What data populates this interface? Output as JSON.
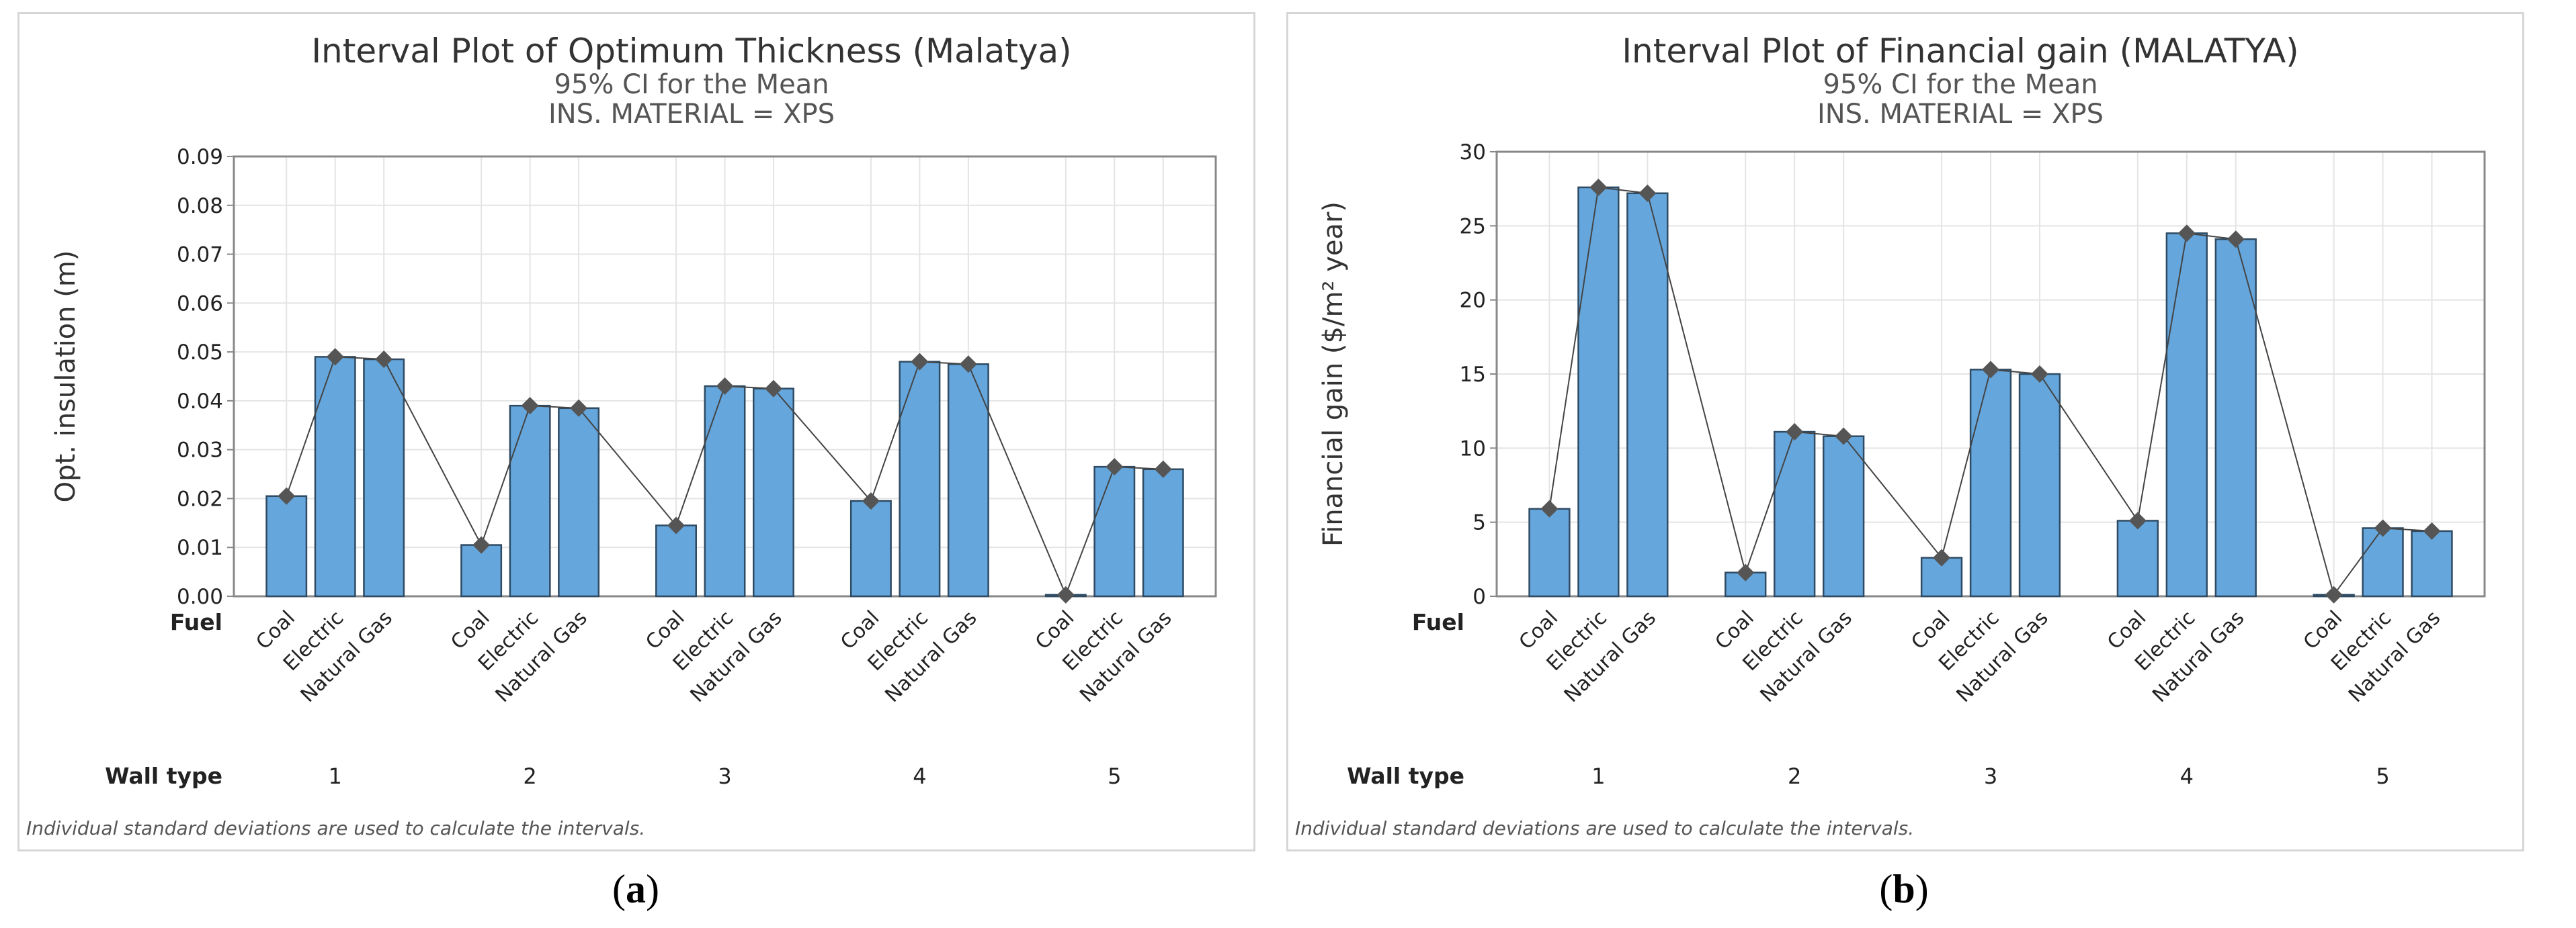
{
  "colors": {
    "bar": "#65a6dc",
    "bar_stroke": "#2f4b63",
    "line": "#444444",
    "marker": "#555555",
    "grid": "#e4e4e4",
    "frame": "#888888"
  },
  "figure_captions": [
    {
      "open": "(",
      "letter": "a",
      "close": ")"
    },
    {
      "open": "(",
      "letter": "b",
      "close": ")"
    }
  ],
  "chart_data": [
    {
      "type": "bar",
      "title": "Interval Plot of Optimum Thickness (Malatya)",
      "subtitle1": "95% CI for the Mean",
      "subtitle2": "INS. MATERIAL = XPS",
      "ylabel": "Opt. insulation (m)",
      "ylim": [
        0,
        0.09
      ],
      "yticks": [
        "0.09",
        "0.08",
        "0.07",
        "0.06",
        "0.05",
        "0.04",
        "0.03",
        "0.02",
        "0.01",
        "0.00"
      ],
      "ytick_values": [
        0.09,
        0.08,
        0.07,
        0.06,
        0.05,
        0.04,
        0.03,
        0.02,
        0.01,
        0.0
      ],
      "row1_label": "Fuel",
      "row2_label": "Wall type",
      "categories": [
        "Coal",
        "Electric",
        "Natural Gas"
      ],
      "groups": [
        "1",
        "2",
        "3",
        "4",
        "5"
      ],
      "values": [
        [
          0.0205,
          0.049,
          0.0485
        ],
        [
          0.0105,
          0.039,
          0.0385
        ],
        [
          0.0145,
          0.043,
          0.0425
        ],
        [
          0.0195,
          0.048,
          0.0475
        ],
        [
          0.0003,
          0.0265,
          0.026
        ]
      ],
      "footnote": "Individual standard deviations are used to calculate the intervals."
    },
    {
      "type": "bar",
      "title": "Interval Plot of Financial gain (MALATYA)",
      "subtitle1": "95% CI for the Mean",
      "subtitle2": "INS. MATERIAL = XPS",
      "ylabel": "Financial gain ($/m² year)",
      "ylim": [
        0,
        30
      ],
      "yticks": [
        "30",
        "25",
        "20",
        "15",
        "10",
        "5",
        "0"
      ],
      "ytick_values": [
        30,
        25,
        20,
        15,
        10,
        5,
        0
      ],
      "row1_label": "Fuel",
      "row2_label": "Wall type",
      "categories": [
        "Coal",
        "Electric",
        "Natural Gas"
      ],
      "groups": [
        "1",
        "2",
        "3",
        "4",
        "5"
      ],
      "values": [
        [
          5.9,
          27.6,
          27.2
        ],
        [
          1.6,
          11.1,
          10.8
        ],
        [
          2.6,
          15.3,
          15.0
        ],
        [
          5.1,
          24.5,
          24.1
        ],
        [
          0.1,
          4.6,
          4.4
        ]
      ],
      "footnote": "Individual standard deviations are used to calculate the intervals."
    }
  ]
}
